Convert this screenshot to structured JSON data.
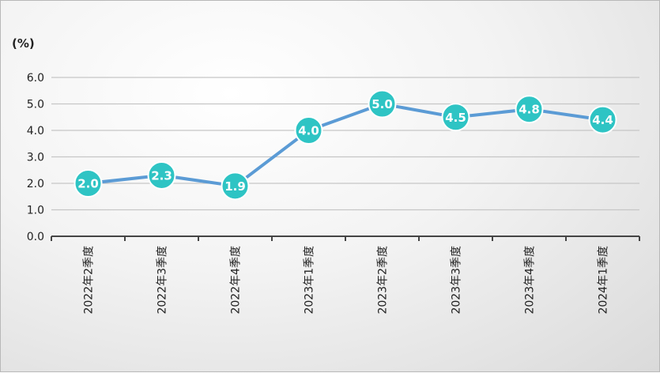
{
  "chart_data": {
    "type": "line",
    "unit_label": "(%)",
    "categories": [
      "2022年2季度",
      "2022年3季度",
      "2022年4季度",
      "2023年1季度",
      "2023年2季度",
      "2023年3季度",
      "2023年4季度",
      "2024年1季度"
    ],
    "series": [
      {
        "values": [
          2.0,
          2.3,
          1.9,
          4.0,
          5.0,
          4.5,
          4.8,
          4.4
        ],
        "data_labels": [
          "2.0",
          "2.3",
          "1.9",
          "4.0",
          "5.0",
          "4.5",
          "4.8",
          "4.4"
        ],
        "line_color": "#5b9bd5",
        "marker_color": "#2ec4c4"
      }
    ],
    "yticks": [
      "0.0",
      "1.0",
      "2.0",
      "3.0",
      "4.0",
      "5.0",
      "6.0"
    ],
    "ylim": [
      0,
      6
    ],
    "grid": true,
    "legend": "none"
  }
}
